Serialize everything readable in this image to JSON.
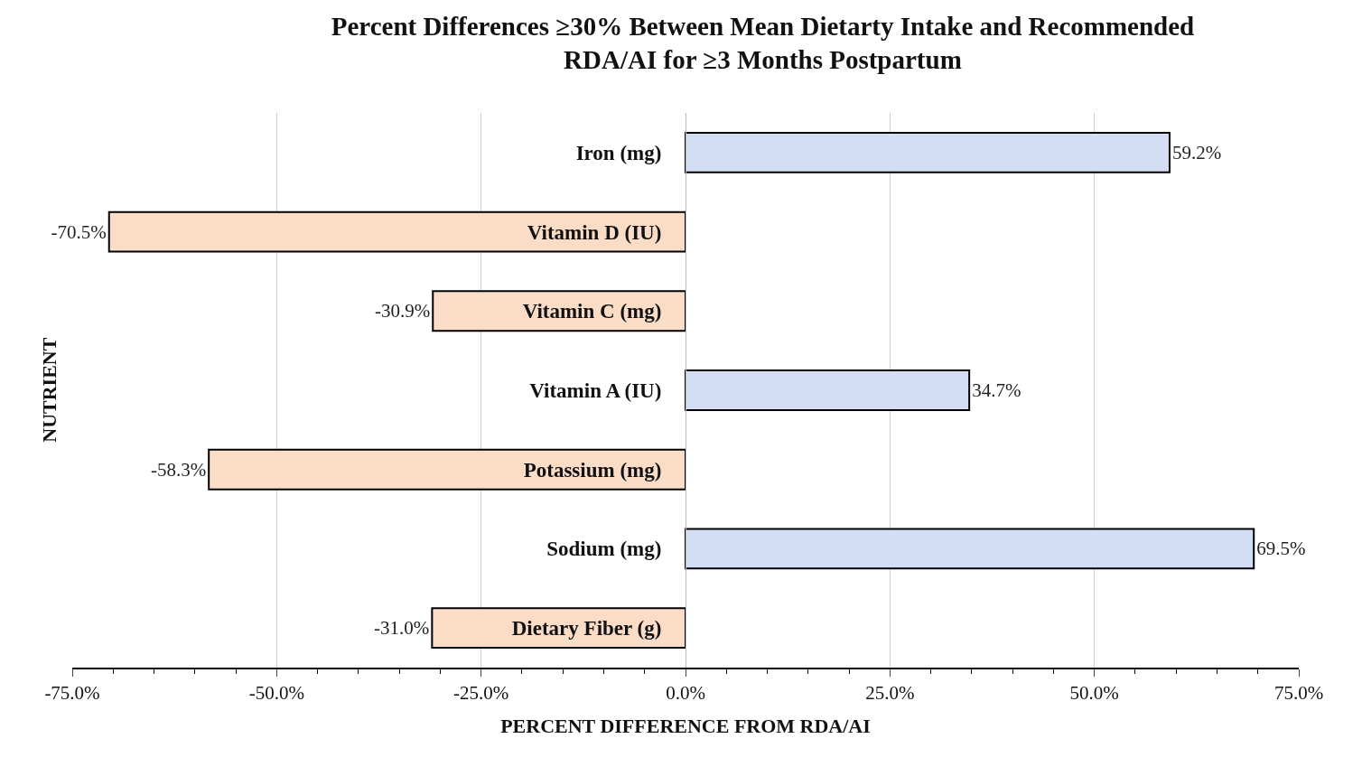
{
  "chart_data": {
    "type": "bar",
    "orientation": "horizontal",
    "title": "Percent Differences ≥30% Between Mean Dietarty Intake and Recommended RDA/AI for ≥3 Months Postpartum",
    "xlabel": "PERCENT DIFFERENCE FROM RDA/AI",
    "ylabel": "NUTRIENT",
    "categories": [
      "Iron (mg)",
      "Vitamin D (IU)",
      "Vitamin C (mg)",
      "Vitamin A (IU)",
      "Potassium (mg)",
      "Sodium (mg)",
      "Dietary Fiber (g)"
    ],
    "values": [
      59.2,
      -70.5,
      -30.9,
      34.7,
      -58.3,
      69.5,
      -31.0
    ],
    "value_labels": [
      "59.2%",
      "-70.5%",
      "-30.9%",
      "34.7%",
      "-58.3%",
      "69.5%",
      "-31.0%"
    ],
    "colors": [
      "#d3def4",
      "#fbdcc7",
      "#fbdcc7",
      "#d3def4",
      "#fbdcc7",
      "#d3def4",
      "#fbdcc7"
    ],
    "xlim": [
      -75,
      75
    ],
    "xticks": [
      {
        "value": -75,
        "label": "-75.0%"
      },
      {
        "value": -50,
        "label": "-50.0%"
      },
      {
        "value": -25,
        "label": "-25.0%"
      },
      {
        "value": 0,
        "label": "0.0%"
      },
      {
        "value": 25,
        "label": "25.0%"
      },
      {
        "value": 50,
        "label": "50.0%"
      },
      {
        "value": 75,
        "label": "75.0%"
      }
    ],
    "grid": "x"
  }
}
